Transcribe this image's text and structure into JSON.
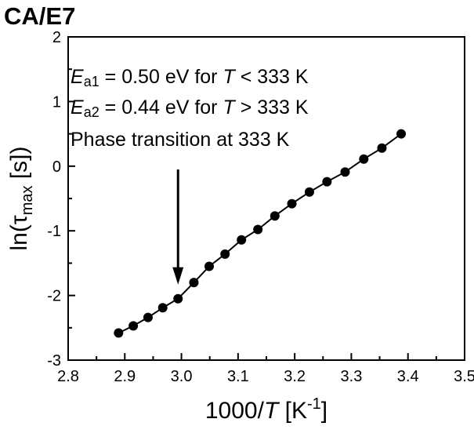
{
  "chart_data": {
    "type": "scatter",
    "title": "CA/E7",
    "xlabel": {
      "base": "1000/",
      "italic": "T",
      "unit_open": " [K",
      "unit_sup": "-1",
      "unit_close": "]"
    },
    "ylabel": {
      "base": "ln(",
      "symbol": "τ",
      "sub": "max",
      "rest": " [s])"
    },
    "xlim": [
      2.8,
      3.5
    ],
    "ylim": [
      -3,
      2
    ],
    "xticks": [
      "2.8",
      "2.9",
      "3.0",
      "3.1",
      "3.2",
      "3.3",
      "3.4",
      "3.5"
    ],
    "yticks": [
      "-3",
      "-2",
      "-1",
      "0",
      "1",
      "2"
    ],
    "grid": false,
    "series": [
      {
        "marker": "filled-circle",
        "line": "solid",
        "color": "#000000",
        "points": [
          {
            "x": 2.889,
            "y": -2.58
          },
          {
            "x": 2.915,
            "y": -2.47
          },
          {
            "x": 2.941,
            "y": -2.34
          },
          {
            "x": 2.967,
            "y": -2.19
          },
          {
            "x": 2.994,
            "y": -2.05
          },
          {
            "x": 3.022,
            "y": -1.8
          },
          {
            "x": 3.049,
            "y": -1.55
          },
          {
            "x": 3.077,
            "y": -1.36
          },
          {
            "x": 3.106,
            "y": -1.14
          },
          {
            "x": 3.135,
            "y": -0.98
          },
          {
            "x": 3.165,
            "y": -0.77
          },
          {
            "x": 3.195,
            "y": -0.58
          },
          {
            "x": 3.226,
            "y": -0.4
          },
          {
            "x": 3.257,
            "y": -0.24
          },
          {
            "x": 3.289,
            "y": -0.09
          },
          {
            "x": 3.322,
            "y": 0.11
          },
          {
            "x": 3.354,
            "y": 0.28
          },
          {
            "x": 3.388,
            "y": 0.5
          }
        ]
      }
    ],
    "annotations": {
      "line1": {
        "E": "E",
        "sub": "a1",
        "rest": " = 0.50 eV for ",
        "T": "T",
        "cond": " < 333 K"
      },
      "line2": {
        "E": "E",
        "sub": "a2",
        "rest": " = 0.44 eV for ",
        "T": "T",
        "cond": " > 333 K"
      },
      "line3": {
        "text": "Phase transition at 333 K"
      },
      "arrow_target": {
        "x": 2.994,
        "y": -1.83
      }
    }
  }
}
